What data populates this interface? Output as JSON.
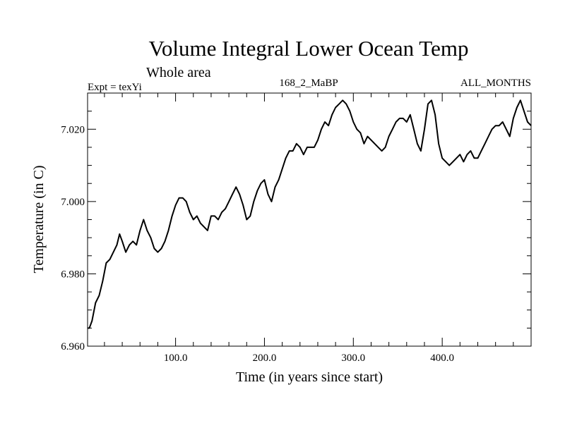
{
  "chart_data": {
    "type": "line",
    "title": "Volume Integral Lower Ocean Temp",
    "subtitle": "Whole area",
    "header_left": "Expt = texYi",
    "header_center": "168_2_MaBP",
    "header_right": "ALL_MONTHS",
    "xlabel": "Time (in years since start)",
    "ylabel": "Temperature (in C)",
    "xlim": [
      1,
      500
    ],
    "ylim": [
      6.96,
      7.03
    ],
    "x_major_ticks": [
      100,
      200,
      300,
      400
    ],
    "x_tick_labels": [
      "100.0",
      "200.0",
      "300.0",
      "400.0"
    ],
    "x_minor_step": 20,
    "y_major_ticks": [
      6.96,
      6.98,
      7.0,
      7.02
    ],
    "y_tick_labels": [
      "6.960",
      "6.980",
      "7.000",
      "7.020"
    ],
    "y_minor_step": 0.005,
    "grid": false,
    "line_color": "#000000",
    "series": [
      {
        "x": [
          1,
          3,
          6,
          10,
          14,
          18,
          22,
          26,
          30,
          34,
          37,
          40,
          44,
          48,
          52,
          56,
          60,
          64,
          68,
          72,
          76,
          80,
          84,
          88,
          92,
          96,
          100,
          104,
          108,
          112,
          116,
          120,
          124,
          128,
          132,
          136,
          140,
          144,
          148,
          152,
          156,
          160,
          164,
          168,
          172,
          176,
          180,
          184,
          188,
          192,
          196,
          200,
          204,
          208,
          212,
          216,
          220,
          224,
          228,
          232,
          236,
          240,
          244,
          248,
          252,
          256,
          260,
          264,
          268,
          272,
          276,
          280,
          284,
          288,
          292,
          296,
          300,
          304,
          308,
          312,
          316,
          320,
          324,
          328,
          332,
          336,
          340,
          344,
          348,
          352,
          356,
          360,
          364,
          368,
          372,
          376,
          380,
          384,
          388,
          392,
          396,
          400,
          404,
          408,
          412,
          416,
          420,
          424,
          428,
          432,
          436,
          440,
          444,
          448,
          452,
          456,
          460,
          464,
          468,
          472,
          476,
          480,
          484,
          488,
          492,
          496,
          500
        ],
        "y": [
          6.965,
          6.965,
          6.967,
          6.972,
          6.974,
          6.978,
          6.983,
          6.984,
          6.986,
          6.988,
          6.991,
          6.989,
          6.986,
          6.988,
          6.989,
          6.988,
          6.992,
          6.995,
          6.992,
          6.99,
          6.987,
          6.986,
          6.987,
          6.989,
          6.992,
          6.996,
          6.999,
          7.001,
          7.001,
          7.0,
          6.997,
          6.995,
          6.996,
          6.994,
          6.993,
          6.992,
          6.996,
          6.996,
          6.995,
          6.997,
          6.998,
          7.0,
          7.002,
          7.004,
          7.002,
          6.999,
          6.995,
          6.996,
          7.0,
          7.003,
          7.005,
          7.006,
          7.002,
          7.0,
          7.004,
          7.006,
          7.009,
          7.012,
          7.014,
          7.014,
          7.016,
          7.015,
          7.013,
          7.015,
          7.015,
          7.015,
          7.017,
          7.02,
          7.022,
          7.021,
          7.024,
          7.026,
          7.027,
          7.028,
          7.027,
          7.025,
          7.022,
          7.02,
          7.019,
          7.016,
          7.018,
          7.017,
          7.016,
          7.015,
          7.014,
          7.015,
          7.018,
          7.02,
          7.022,
          7.023,
          7.023,
          7.022,
          7.024,
          7.02,
          7.016,
          7.014,
          7.02,
          7.027,
          7.028,
          7.024,
          7.016,
          7.012,
          7.011,
          7.01,
          7.011,
          7.012,
          7.013,
          7.011,
          7.013,
          7.014,
          7.012,
          7.012,
          7.014,
          7.016,
          7.018,
          7.02,
          7.021,
          7.021,
          7.022,
          7.02,
          7.018,
          7.023,
          7.026,
          7.028,
          7.025,
          7.022,
          7.021
        ]
      }
    ]
  }
}
